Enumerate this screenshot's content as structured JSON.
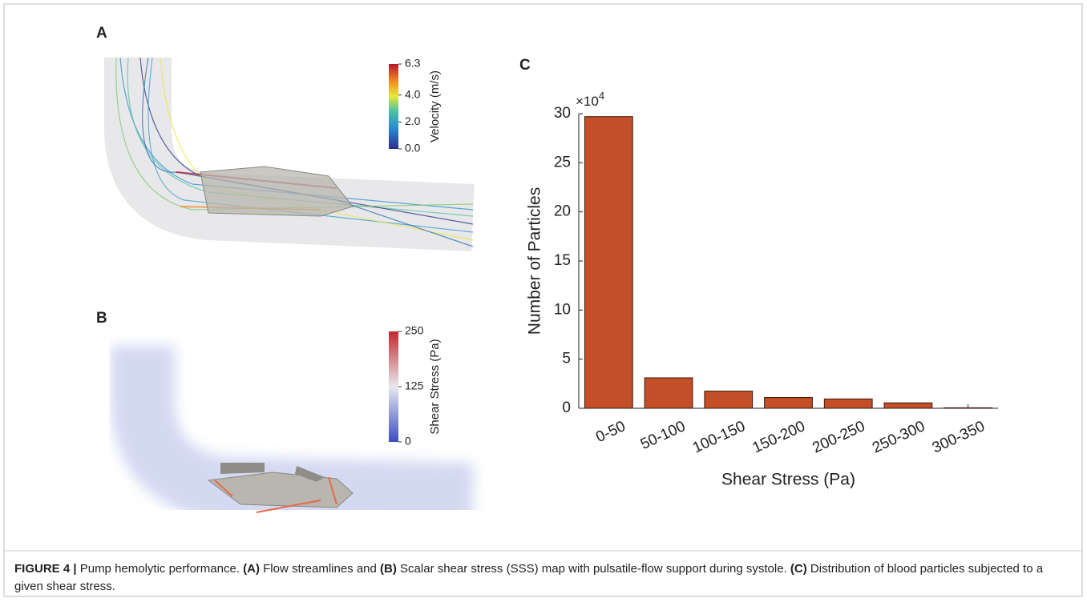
{
  "panels": {
    "a": {
      "label": "A",
      "colorbar": {
        "title": "Velocity (m/s)",
        "range": [
          0,
          6.3
        ],
        "ticks": [
          {
            "value": 0,
            "label": "0.0"
          },
          {
            "value": 2,
            "label": "2.0"
          },
          {
            "value": 4,
            "label": "4.0"
          },
          6.3
        ]
      }
    },
    "b": {
      "label": "B",
      "colorbar": {
        "title": "Shear Stress (Pa)",
        "range": [
          0,
          250
        ],
        "ticks": [
          0,
          125,
          250
        ]
      }
    },
    "c": {
      "label": "C"
    }
  },
  "chart_data": {
    "type": "bar",
    "xlabel": "Shear Stress (Pa)",
    "ylabel": "Number of Particles",
    "y_multiplier": {
      "base": "×10",
      "exponent": "4"
    },
    "categories": [
      "0-50",
      "50-100",
      "100-150",
      "150-200",
      "200-250",
      "250-300",
      "300-350"
    ],
    "values": [
      29.7,
      3.1,
      1.75,
      1.1,
      0.95,
      0.55,
      0.05
    ],
    "color": "#c44e27",
    "ylim": [
      0,
      30
    ],
    "yticks": [
      0,
      5,
      10,
      15,
      20,
      25,
      30
    ],
    "grid": false
  },
  "caption": {
    "label": "FIGURE 4 |",
    "parts": [
      "Pump hemolytic performance.",
      "(A)",
      "Flow streamlines and",
      "(B)",
      "Scalar shear stress (SSS) map with pulsatile-flow support during systole.",
      "(C)",
      "Distribution of blood particles subjected to a given shear stress."
    ]
  }
}
